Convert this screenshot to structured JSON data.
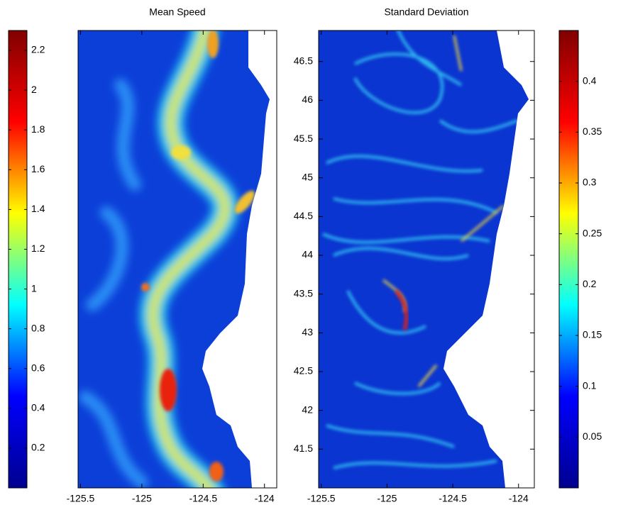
{
  "chart_data": [
    {
      "type": "heatmap",
      "title": "Mean Speed",
      "colormap": "jet",
      "xlim": [
        -125.52,
        -123.9
      ],
      "xticks": [
        -125.5,
        -125,
        -124.5,
        -124
      ],
      "ylim": [
        41.0,
        46.9
      ],
      "colorbar": {
        "side": "left",
        "clim": [
          0,
          2.3
        ],
        "ticks": [
          0.2,
          0.4,
          0.6,
          0.8,
          1,
          1.2,
          1.4,
          1.6,
          1.8,
          2,
          2.2
        ]
      }
    },
    {
      "type": "heatmap",
      "title": "Standard Deviation",
      "colormap": "jet",
      "xlim": [
        -125.52,
        -123.88
      ],
      "xticks": [
        -125.5,
        -125,
        -124.5,
        -124
      ],
      "ylim": [
        41.0,
        46.9
      ],
      "yticks": [
        41.5,
        42,
        42.5,
        43,
        43.5,
        44,
        44.5,
        45,
        45.5,
        46,
        46.5
      ],
      "colorbar": {
        "side": "right",
        "clim": [
          0,
          0.45
        ],
        "ticks": [
          0.05,
          0.1,
          0.15,
          0.2,
          0.25,
          0.3,
          0.35,
          0.4
        ]
      }
    }
  ]
}
